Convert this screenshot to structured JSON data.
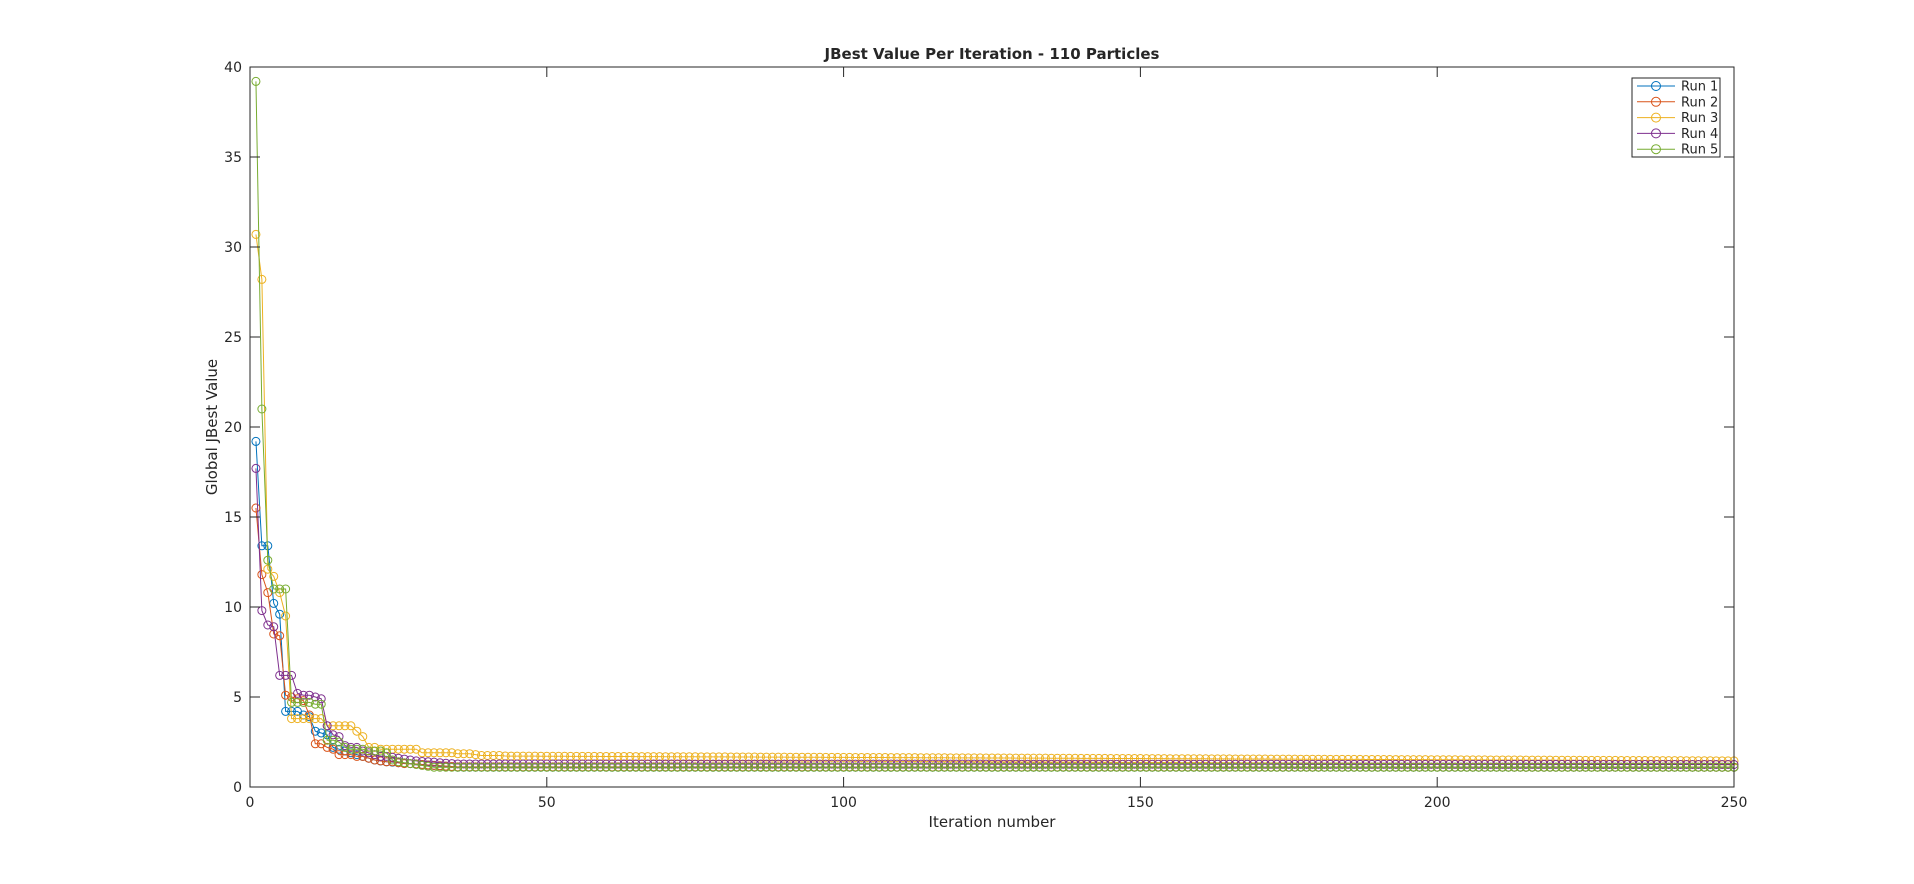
{
  "chart_data": {
    "type": "line",
    "title": "JBest Value Per Iteration - 110 Particles",
    "xlabel": "Iteration number",
    "ylabel": "Global JBest Value",
    "xlim": [
      0,
      250
    ],
    "ylim": [
      0,
      40
    ],
    "xticks": [
      0,
      50,
      100,
      150,
      200,
      250
    ],
    "yticks": [
      0,
      5,
      10,
      15,
      20,
      25,
      30,
      35,
      40
    ],
    "grid": false,
    "legend_position": "top-right",
    "marker": "circle",
    "iterations": 250,
    "series": [
      {
        "name": "Run 1",
        "color": "#0072BD",
        "values": [
          19.2,
          13.4,
          13.4,
          10.2,
          9.6,
          4.2,
          4.2,
          4.2,
          4.0,
          3.9,
          3.1,
          3.0,
          2.9,
          2.2,
          2.1,
          2.0,
          1.9,
          1.8,
          1.7,
          1.6,
          1.5,
          1.45,
          1.4,
          1.38,
          1.35,
          1.32,
          1.3,
          1.28,
          1.25,
          1.22,
          1.2,
          1.18,
          1.15,
          1.12,
          1.1
        ],
        "tail_value": 1.1
      },
      {
        "name": "Run 2",
        "color": "#D95319",
        "values": [
          15.5,
          11.8,
          10.8,
          8.5,
          8.4,
          5.1,
          5.0,
          4.9,
          4.8,
          4.0,
          2.4,
          2.4,
          2.2,
          2.1,
          1.8,
          1.8,
          1.8,
          1.7,
          1.7,
          1.6,
          1.5,
          1.45,
          1.4,
          1.4,
          1.35,
          1.3,
          1.3,
          1.28,
          1.25,
          1.22,
          1.2,
          1.18,
          1.16,
          1.14,
          1.12
        ],
        "tail_value": 1.1
      },
      {
        "name": "Run 3",
        "color": "#EDB120",
        "values": [
          30.7,
          28.2,
          12.1,
          11.7,
          10.8,
          9.5,
          3.8,
          3.8,
          3.8,
          3.8,
          3.8,
          3.8,
          3.4,
          3.4,
          3.4,
          3.4,
          3.4,
          3.1,
          2.8,
          2.2,
          2.2,
          2.1,
          2.1,
          2.1,
          2.1,
          2.1,
          2.1,
          2.1,
          1.9,
          1.9,
          1.9,
          1.9,
          1.9,
          1.9,
          1.85,
          1.85,
          1.85,
          1.8,
          1.75,
          1.75,
          1.75,
          1.75
        ],
        "tail_start": 1.72,
        "tail_value": 1.45
      },
      {
        "name": "Run 4",
        "color": "#7E2F8E",
        "values": [
          17.7,
          9.8,
          9.0,
          8.9,
          6.2,
          6.2,
          6.2,
          5.2,
          5.1,
          5.1,
          5.0,
          4.9,
          3.4,
          2.9,
          2.8,
          2.3,
          2.2,
          2.2,
          2.0,
          1.9,
          1.8,
          1.7,
          1.7,
          1.65,
          1.6,
          1.55,
          1.5,
          1.45,
          1.42,
          1.4,
          1.38,
          1.35,
          1.32,
          1.3,
          1.28
        ],
        "tail_value": 1.25
      },
      {
        "name": "Run 5",
        "color": "#77AC30",
        "values": [
          39.2,
          21.0,
          12.6,
          11.0,
          11.0,
          11.0,
          4.7,
          4.7,
          4.7,
          4.7,
          4.6,
          4.6,
          2.6,
          2.6,
          2.5,
          2.2,
          2.1,
          2.1,
          2.1,
          2.0,
          2.0,
          2.0,
          1.9,
          1.5,
          1.4,
          1.35,
          1.3,
          1.25,
          1.2,
          1.15,
          1.1,
          1.1,
          1.1,
          1.1,
          1.1
        ],
        "tail_value": 1.1
      }
    ]
  }
}
